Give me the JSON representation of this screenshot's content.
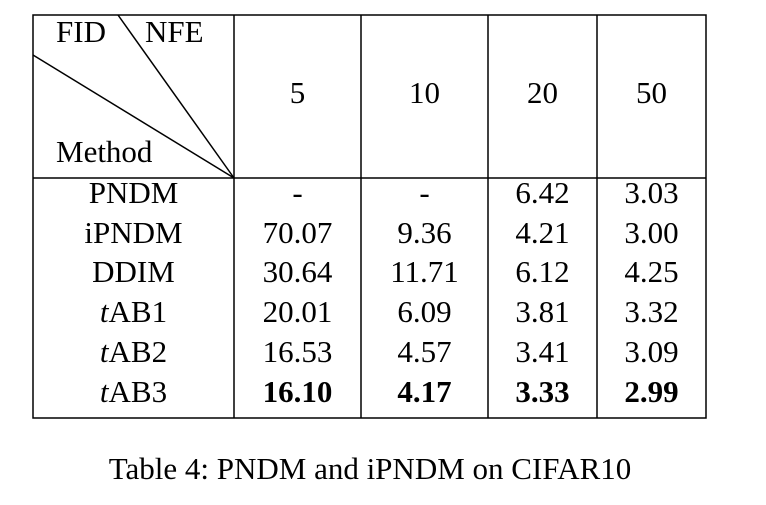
{
  "table": {
    "corner": {
      "top_left": "FID",
      "top_right": "NFE",
      "bottom": "Method"
    },
    "columns": [
      "5",
      "10",
      "20",
      "50"
    ],
    "rows": [
      [
        "PNDM",
        "-",
        "-",
        "6.42",
        "3.03"
      ],
      [
        "iPNDM",
        "70.07",
        "9.36",
        "4.21",
        "3.00"
      ],
      [
        "DDIM",
        "30.64",
        "11.71",
        "6.12",
        "4.25"
      ],
      [
        "tAB1",
        "20.01",
        "6.09",
        "3.81",
        "3.32"
      ],
      [
        "tAB2",
        "16.53",
        "4.57",
        "3.41",
        "3.09"
      ],
      [
        "tAB3",
        "16.10",
        "4.17",
        "3.33",
        "2.99"
      ]
    ],
    "bold_row": 5,
    "italic_prefix_rows": [
      3,
      4,
      5
    ]
  },
  "caption": "Table 4: PNDM and iPNDM on CIFAR10"
}
